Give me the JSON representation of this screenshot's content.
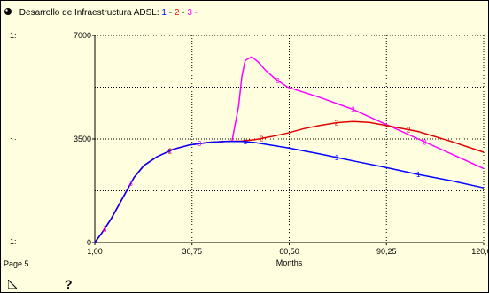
{
  "title": {
    "prefix": "Desarrollo de Infraestructura ADSL:",
    "series_ids": [
      "1",
      "2",
      "3"
    ],
    "separator": " - ",
    "trailing": " -"
  },
  "side_labels": [
    "1:",
    "1:",
    "1:"
  ],
  "footer": {
    "page": "Page 5",
    "help": "?"
  },
  "colors": {
    "background": "#ffffe0",
    "series1": "#0000ff",
    "series2": "#e00000",
    "series3": "#ff00ff",
    "grid": "#000000"
  },
  "chart_data": {
    "type": "line",
    "xlabel": "Months",
    "ylabel": "",
    "xlim": [
      1,
      120
    ],
    "ylim": [
      0,
      7000
    ],
    "x_ticks": [
      "1,00",
      "30,75",
      "60,50",
      "90,25",
      "120,00"
    ],
    "y_ticks": [
      "0",
      "3500",
      "7000"
    ],
    "grid": true,
    "series": [
      {
        "name": "1",
        "x": [
          1,
          3,
          6,
          10,
          13,
          16,
          20,
          25,
          30,
          36,
          41,
          46,
          50,
          60,
          70,
          80,
          90,
          100,
          110,
          120
        ],
        "values": [
          0,
          300,
          800,
          1600,
          2200,
          2600,
          2900,
          3150,
          3300,
          3390,
          3420,
          3420,
          3380,
          3200,
          2990,
          2760,
          2540,
          2300,
          2090,
          1850
        ]
      },
      {
        "name": "2",
        "x": [
          1,
          3,
          6,
          10,
          13,
          16,
          20,
          25,
          30,
          36,
          41,
          46,
          50,
          55,
          60,
          65,
          70,
          75,
          80,
          85,
          90,
          100,
          110,
          120
        ],
        "values": [
          0,
          300,
          800,
          1600,
          2200,
          2600,
          2900,
          3150,
          3300,
          3390,
          3420,
          3430,
          3480,
          3580,
          3700,
          3850,
          3960,
          4050,
          4090,
          4060,
          3960,
          3750,
          3420,
          3050
        ]
      },
      {
        "name": "3",
        "x": [
          1,
          3,
          6,
          10,
          13,
          16,
          20,
          25,
          30,
          36,
          41,
          43,
          45,
          46,
          47,
          49,
          51,
          53,
          56,
          60,
          70,
          80,
          90,
          100,
          110,
          120
        ],
        "values": [
          0,
          300,
          800,
          1600,
          2200,
          2600,
          2900,
          3150,
          3300,
          3390,
          3420,
          3430,
          4600,
          5600,
          6150,
          6280,
          6100,
          5850,
          5550,
          5250,
          4900,
          4500,
          4000,
          3500,
          3000,
          2500
        ]
      }
    ]
  }
}
